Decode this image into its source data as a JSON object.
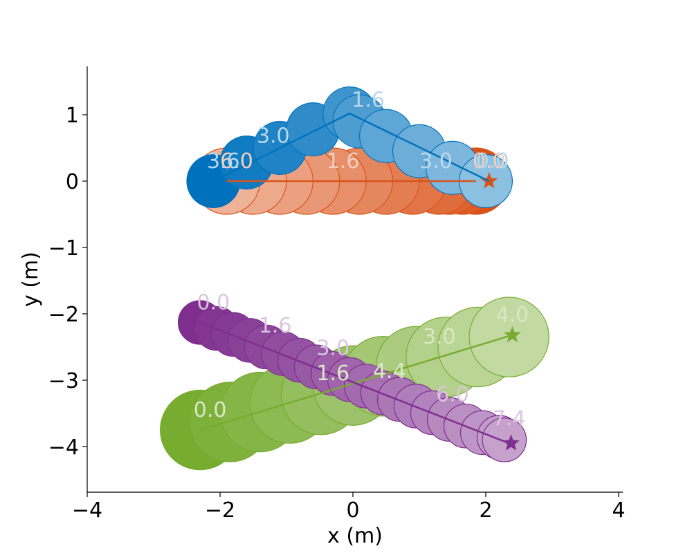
{
  "chart_data": {
    "type": "scatter",
    "title": "",
    "xlabel": "x (m)",
    "ylabel": "y (m)",
    "xlim": [
      -4,
      4.05
    ],
    "ylim": [
      -4.72,
      1.75
    ],
    "xticks": [
      -4,
      -2,
      0,
      2,
      4
    ],
    "yticks": [
      -4,
      -3,
      -2,
      -1,
      0,
      1
    ],
    "xtick_labels": [
      "−4",
      "−2",
      "0",
      "2",
      "4"
    ],
    "ytick_labels": [
      "−4",
      "−3",
      "−2",
      "−1",
      "0",
      "1"
    ],
    "grid": false,
    "legend": "none",
    "spines": "left-bottom",
    "series": [
      {
        "key": "orange",
        "color": "#d95319",
        "radius": 0.5,
        "points": [
          {
            "x": 1.85,
            "y": 0.0
          },
          {
            "x": 1.65,
            "y": 0.0
          },
          {
            "x": 1.45,
            "y": 0.0
          },
          {
            "x": 1.3,
            "y": 0.0
          },
          {
            "x": 0.9,
            "y": 0.0
          },
          {
            "x": 0.5,
            "y": 0.0
          },
          {
            "x": 0.1,
            "y": 0.0
          },
          {
            "x": -0.3,
            "y": 0.0
          },
          {
            "x": -0.7,
            "y": 0.0
          },
          {
            "x": -1.1,
            "y": 0.0
          },
          {
            "x": -1.5,
            "y": 0.0
          },
          {
            "x": -1.9,
            "y": 0.0
          }
        ],
        "path": [
          [
            1.85,
            0.0
          ],
          [
            -1.9,
            0.0
          ]
        ],
        "goal": {
          "x": 2.05,
          "y": 0.0
        },
        "labels": [
          {
            "text": "6.0",
            "x": -1.75,
            "y": 0.2
          },
          {
            "text": "1.6",
            "x": -0.15,
            "y": 0.2
          },
          {
            "text": "3.0",
            "x": 1.25,
            "y": 0.2
          },
          {
            "text": "0.0",
            "x": 2.05,
            "y": 0.2
          }
        ]
      },
      {
        "key": "blue",
        "color": "#0072bd",
        "radius": 0.4,
        "points": [
          {
            "x": -2.1,
            "y": 0.0
          },
          {
            "x": -1.6,
            "y": 0.28
          },
          {
            "x": -1.1,
            "y": 0.5
          },
          {
            "x": -0.6,
            "y": 0.78
          },
          {
            "x": -0.05,
            "y": 1.02
          },
          {
            "x": 0.1,
            "y": 0.9
          },
          {
            "x": 0.5,
            "y": 0.68
          },
          {
            "x": 1.0,
            "y": 0.45
          },
          {
            "x": 1.5,
            "y": 0.2
          },
          {
            "x": 2.0,
            "y": 0.0
          }
        ],
        "path": [
          [
            -2.1,
            0.0
          ],
          [
            -0.05,
            1.02
          ],
          [
            2.05,
            0.0
          ]
        ],
        "goal": {
          "x": -2.05,
          "y": 0.0
        },
        "labels": [
          {
            "text": "3.6",
            "x": -1.95,
            "y": 0.2
          },
          {
            "text": "3.0",
            "x": -1.2,
            "y": 0.58
          },
          {
            "text": "1.6",
            "x": 0.23,
            "y": 1.12
          },
          {
            "text": "3.0",
            "x": 1.25,
            "y": 0.2
          },
          {
            "text": "0.0",
            "x": 2.1,
            "y": 0.2
          }
        ]
      },
      {
        "key": "green",
        "color": "#77ac30",
        "radius": 0.6,
        "points": [
          {
            "x": -2.3,
            "y": -3.75
          },
          {
            "x": -1.85,
            "y": -3.63
          },
          {
            "x": -1.4,
            "y": -3.48
          },
          {
            "x": -0.95,
            "y": -3.35
          },
          {
            "x": -0.48,
            "y": -3.22
          },
          {
            "x": 0.0,
            "y": -3.08
          },
          {
            "x": 0.45,
            "y": -2.94
          },
          {
            "x": 0.95,
            "y": -2.79
          },
          {
            "x": 1.4,
            "y": -2.65
          },
          {
            "x": 1.88,
            "y": -2.5
          },
          {
            "x": 2.35,
            "y": -2.35
          }
        ],
        "path": [
          [
            -2.3,
            -3.75
          ],
          [
            2.4,
            -2.32
          ]
        ],
        "goal": {
          "x": 2.4,
          "y": -2.32
        },
        "labels": [
          {
            "text": "0.0",
            "x": -2.15,
            "y": -3.55
          },
          {
            "text": "1.6",
            "x": -0.3,
            "y": -3.0
          },
          {
            "text": "4.4",
            "x": 0.55,
            "y": -2.97
          },
          {
            "text": "3.0",
            "x": 1.3,
            "y": -2.45
          },
          {
            "text": "4.0",
            "x": 2.4,
            "y": -2.12
          }
        ]
      },
      {
        "key": "purple",
        "color": "#7e2f8e",
        "radius": 0.33,
        "points": [
          {
            "x": -2.3,
            "y": -2.13
          },
          {
            "x": -2.05,
            "y": -2.22
          },
          {
            "x": -1.8,
            "y": -2.31
          },
          {
            "x": -1.55,
            "y": -2.4
          },
          {
            "x": -1.3,
            "y": -2.5
          },
          {
            "x": -1.05,
            "y": -2.6
          },
          {
            "x": -0.8,
            "y": -2.7
          },
          {
            "x": -0.55,
            "y": -2.8
          },
          {
            "x": -0.3,
            "y": -2.9
          },
          {
            "x": -0.05,
            "y": -2.99
          },
          {
            "x": 0.2,
            "y": -3.09
          },
          {
            "x": 0.45,
            "y": -3.19
          },
          {
            "x": 0.7,
            "y": -3.29
          },
          {
            "x": 0.95,
            "y": -3.39
          },
          {
            "x": 1.2,
            "y": -3.49
          },
          {
            "x": 1.45,
            "y": -3.59
          },
          {
            "x": 1.7,
            "y": -3.69
          },
          {
            "x": 1.95,
            "y": -3.79
          },
          {
            "x": 2.2,
            "y": -3.86
          },
          {
            "x": 2.28,
            "y": -3.9
          }
        ],
        "path": [
          [
            -2.3,
            -2.13
          ],
          [
            2.35,
            -3.95
          ]
        ],
        "goal": {
          "x": 2.38,
          "y": -3.95
        },
        "labels": [
          {
            "text": "0.0",
            "x": -2.1,
            "y": -1.93
          },
          {
            "text": "1.6",
            "x": -1.17,
            "y": -2.28
          },
          {
            "text": "3.0",
            "x": -0.3,
            "y": -2.62
          },
          {
            "text": "6.0",
            "x": 1.5,
            "y": -3.32
          },
          {
            "text": "7.4",
            "x": 2.35,
            "y": -3.68
          }
        ]
      }
    ]
  }
}
